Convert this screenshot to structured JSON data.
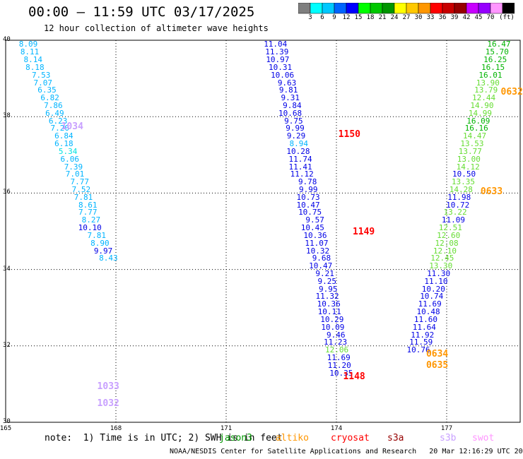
{
  "header": {
    "title": "00:00 – 11:59 UTC 03/17/2025",
    "subtitle": "12 hour collection of altimeter wave heights"
  },
  "colorbar": {
    "colors": [
      "#7f7f7f",
      "#00ffff",
      "#00c8ff",
      "#0064ff",
      "#0000ff",
      "#00ff00",
      "#00c800",
      "#009600",
      "#ffff00",
      "#ffc800",
      "#ff9600",
      "#ff0000",
      "#c80000",
      "#960000",
      "#c800ff",
      "#9600ff",
      "#ff96ff",
      "#000000"
    ],
    "labels": [
      "3",
      "6",
      "9",
      "12",
      "15",
      "18",
      "21",
      "24",
      "27",
      "30",
      "33",
      "36",
      "39",
      "42",
      "45",
      "70",
      "(ft)"
    ]
  },
  "map": {
    "lat_min": 30,
    "lat_max": 40,
    "lon_min": 165,
    "lon_max": 179,
    "lat_labels": [
      "40",
      "38",
      "36",
      "34",
      "32",
      "30"
    ],
    "lon_labels": [
      "165",
      "168",
      "171",
      "174",
      "177"
    ]
  },
  "wave_tracks": [
    {
      "satellite": "jason3",
      "points": [
        {
          "lat": 39.9,
          "lon": 165.87,
          "value": "8.09"
        },
        {
          "lat": 39.7,
          "lon": 165.91,
          "value": "8.11"
        },
        {
          "lat": 39.5,
          "lon": 166.0,
          "value": "8.14"
        },
        {
          "lat": 39.3,
          "lon": 166.05,
          "value": "8.18"
        },
        {
          "lat": 39.1,
          "lon": 166.22,
          "value": "7.53"
        },
        {
          "lat": 38.9,
          "lon": 166.27,
          "value": "7.07"
        },
        {
          "lat": 38.7,
          "lon": 166.38,
          "value": "6.35"
        },
        {
          "lat": 38.5,
          "lon": 166.46,
          "value": "6.82"
        },
        {
          "lat": 38.3,
          "lon": 166.55,
          "value": "7.86"
        },
        {
          "lat": 38.1,
          "lon": 166.59,
          "value": "6.49"
        },
        {
          "lat": 37.9,
          "lon": 166.68,
          "value": "6.23"
        },
        {
          "lat": 37.7,
          "lon": 166.73,
          "value": "7.20"
        },
        {
          "lat": 37.5,
          "lon": 166.84,
          "value": "6.84"
        },
        {
          "lat": 37.3,
          "lon": 166.84,
          "value": "6.18"
        },
        {
          "lat": 37.1,
          "lon": 166.95,
          "value": "5.34"
        },
        {
          "lat": 36.9,
          "lon": 167.0,
          "value": "6.06"
        },
        {
          "lat": 36.7,
          "lon": 167.1,
          "value": "7.39"
        },
        {
          "lat": 36.5,
          "lon": 167.14,
          "value": "7.01"
        },
        {
          "lat": 36.3,
          "lon": 167.27,
          "value": "7.77"
        },
        {
          "lat": 36.1,
          "lon": 167.31,
          "value": "7.52"
        },
        {
          "lat": 35.9,
          "lon": 167.37,
          "value": "7.81"
        },
        {
          "lat": 35.7,
          "lon": 167.49,
          "value": "8.61"
        },
        {
          "lat": 35.5,
          "lon": 167.49,
          "value": "7.77"
        },
        {
          "lat": 35.3,
          "lon": 167.58,
          "value": "8.27"
        },
        {
          "lat": 35.1,
          "lon": 167.61,
          "value": "10.10"
        },
        {
          "lat": 34.9,
          "lon": 167.73,
          "value": "7.81"
        },
        {
          "lat": 34.7,
          "lon": 167.82,
          "value": "8.90"
        },
        {
          "lat": 34.5,
          "lon": 167.91,
          "value": "9.97"
        },
        {
          "lat": 34.3,
          "lon": 168.05,
          "value": "8.43"
        }
      ]
    },
    {
      "satellite": "cryosat-a",
      "points": [
        {
          "lat": 39.9,
          "lon": 172.66,
          "value": "11.04"
        },
        {
          "lat": 39.7,
          "lon": 172.7,
          "value": "11.39"
        },
        {
          "lat": 39.5,
          "lon": 172.72,
          "value": "10.97"
        },
        {
          "lat": 39.3,
          "lon": 172.79,
          "value": "10.31"
        },
        {
          "lat": 39.1,
          "lon": 172.85,
          "value": "10.06"
        },
        {
          "lat": 38.9,
          "lon": 172.91,
          "value": "9.63"
        },
        {
          "lat": 38.7,
          "lon": 172.95,
          "value": "9.81"
        },
        {
          "lat": 38.5,
          "lon": 173.0,
          "value": "9.31"
        },
        {
          "lat": 38.3,
          "lon": 173.05,
          "value": "9.84"
        },
        {
          "lat": 38.1,
          "lon": 173.06,
          "value": "10.68"
        },
        {
          "lat": 37.9,
          "lon": 173.09,
          "value": "9.75"
        },
        {
          "lat": 37.7,
          "lon": 173.13,
          "value": "9.99"
        },
        {
          "lat": 37.5,
          "lon": 173.16,
          "value": "9.29"
        },
        {
          "lat": 37.3,
          "lon": 173.23,
          "value": "8.94"
        },
        {
          "lat": 37.1,
          "lon": 173.28,
          "value": "10.28"
        },
        {
          "lat": 36.9,
          "lon": 173.34,
          "value": "11.74"
        },
        {
          "lat": 36.7,
          "lon": 173.34,
          "value": "11.41"
        },
        {
          "lat": 36.5,
          "lon": 173.38,
          "value": "11.12"
        },
        {
          "lat": 36.3,
          "lon": 173.47,
          "value": "9.78"
        },
        {
          "lat": 36.1,
          "lon": 173.49,
          "value": "9.99"
        },
        {
          "lat": 35.9,
          "lon": 173.55,
          "value": "10.73"
        },
        {
          "lat": 35.7,
          "lon": 173.55,
          "value": "10.47"
        },
        {
          "lat": 35.5,
          "lon": 173.6,
          "value": "10.75"
        },
        {
          "lat": 35.3,
          "lon": 173.67,
          "value": "9.57"
        },
        {
          "lat": 35.1,
          "lon": 173.67,
          "value": "10.45"
        },
        {
          "lat": 34.9,
          "lon": 173.74,
          "value": "10.36"
        },
        {
          "lat": 34.7,
          "lon": 173.78,
          "value": "11.07"
        },
        {
          "lat": 34.5,
          "lon": 173.81,
          "value": "10.32"
        },
        {
          "lat": 34.3,
          "lon": 173.85,
          "value": "9.68"
        },
        {
          "lat": 34.1,
          "lon": 173.89,
          "value": "10.47"
        },
        {
          "lat": 33.9,
          "lon": 173.94,
          "value": "9.21"
        },
        {
          "lat": 33.7,
          "lon": 174.0,
          "value": "9.25"
        },
        {
          "lat": 33.5,
          "lon": 174.03,
          "value": "9.95"
        },
        {
          "lat": 33.3,
          "lon": 174.07,
          "value": "11.32"
        },
        {
          "lat": 33.1,
          "lon": 174.11,
          "value": "10.36"
        },
        {
          "lat": 32.9,
          "lon": 174.13,
          "value": "10.11"
        },
        {
          "lat": 32.7,
          "lon": 174.2,
          "value": "10.29"
        },
        {
          "lat": 32.5,
          "lon": 174.22,
          "value": "10.09"
        },
        {
          "lat": 32.3,
          "lon": 174.24,
          "value": "9.46"
        },
        {
          "lat": 32.1,
          "lon": 174.29,
          "value": "11.23"
        },
        {
          "lat": 31.9,
          "lon": 174.33,
          "value": "12.06"
        },
        {
          "lat": 31.7,
          "lon": 174.38,
          "value": "11.69"
        },
        {
          "lat": 31.5,
          "lon": 174.4,
          "value": "11.20"
        },
        {
          "lat": 31.3,
          "lon": 174.45,
          "value": "10.35"
        }
      ]
    },
    {
      "satellite": "cryosat-b",
      "points": [
        {
          "lat": 39.9,
          "lon": 178.74,
          "value": "16.47"
        },
        {
          "lat": 39.7,
          "lon": 178.69,
          "value": "15.70"
        },
        {
          "lat": 39.5,
          "lon": 178.64,
          "value": "16.25"
        },
        {
          "lat": 39.3,
          "lon": 178.58,
          "value": "16.15"
        },
        {
          "lat": 39.1,
          "lon": 178.51,
          "value": "16.01"
        },
        {
          "lat": 38.9,
          "lon": 178.44,
          "value": "13.90"
        },
        {
          "lat": 38.7,
          "lon": 178.39,
          "value": "13.79"
        },
        {
          "lat": 38.5,
          "lon": 178.33,
          "value": "12.44"
        },
        {
          "lat": 38.3,
          "lon": 178.28,
          "value": "14.90"
        },
        {
          "lat": 38.1,
          "lon": 178.23,
          "value": "14.99"
        },
        {
          "lat": 37.9,
          "lon": 178.18,
          "value": "16.09"
        },
        {
          "lat": 37.7,
          "lon": 178.13,
          "value": "16.16"
        },
        {
          "lat": 37.5,
          "lon": 178.08,
          "value": "14.47"
        },
        {
          "lat": 37.3,
          "lon": 178.01,
          "value": "13.53"
        },
        {
          "lat": 37.1,
          "lon": 177.96,
          "value": "13.77"
        },
        {
          "lat": 36.9,
          "lon": 177.92,
          "value": "13.00"
        },
        {
          "lat": 36.7,
          "lon": 177.9,
          "value": "14.12"
        },
        {
          "lat": 36.5,
          "lon": 177.79,
          "value": "10.50"
        },
        {
          "lat": 36.3,
          "lon": 177.77,
          "value": "13.35"
        },
        {
          "lat": 36.1,
          "lon": 177.71,
          "value": "14.28"
        },
        {
          "lat": 35.9,
          "lon": 177.66,
          "value": "11.98"
        },
        {
          "lat": 35.7,
          "lon": 177.62,
          "value": "10.72"
        },
        {
          "lat": 35.5,
          "lon": 177.55,
          "value": "13.22"
        },
        {
          "lat": 35.3,
          "lon": 177.5,
          "value": "11.09"
        },
        {
          "lat": 35.1,
          "lon": 177.42,
          "value": "12.51"
        },
        {
          "lat": 34.9,
          "lon": 177.37,
          "value": "12.60"
        },
        {
          "lat": 34.7,
          "lon": 177.32,
          "value": "12.08"
        },
        {
          "lat": 34.5,
          "lon": 177.27,
          "value": "12.10"
        },
        {
          "lat": 34.3,
          "lon": 177.2,
          "value": "12.45"
        },
        {
          "lat": 34.1,
          "lon": 177.16,
          "value": "13.30"
        },
        {
          "lat": 33.9,
          "lon": 177.1,
          "value": "11.30"
        },
        {
          "lat": 33.7,
          "lon": 177.03,
          "value": "11.10"
        },
        {
          "lat": 33.5,
          "lon": 176.96,
          "value": "10.20"
        },
        {
          "lat": 33.3,
          "lon": 176.91,
          "value": "10.74"
        },
        {
          "lat": 33.1,
          "lon": 176.86,
          "value": "11.69"
        },
        {
          "lat": 32.9,
          "lon": 176.82,
          "value": "10.48"
        },
        {
          "lat": 32.7,
          "lon": 176.75,
          "value": "11.60"
        },
        {
          "lat": 32.5,
          "lon": 176.71,
          "value": "11.64"
        },
        {
          "lat": 32.3,
          "lon": 176.66,
          "value": "11.92"
        },
        {
          "lat": 32.1,
          "lon": 176.62,
          "value": "11.59"
        },
        {
          "lat": 31.9,
          "lon": 176.55,
          "value": "10.76"
        }
      ]
    }
  ],
  "pass_times": [
    {
      "value": "1150",
      "lat": 37.55,
      "lon": 174.59,
      "color": "#ff0000"
    },
    {
      "value": "1149",
      "lat": 35.0,
      "lon": 174.98,
      "color": "#ff0000"
    },
    {
      "value": "1148",
      "lat": 31.2,
      "lon": 174.72,
      "color": "#ff0000"
    },
    {
      "value": "1034",
      "lat": 37.75,
      "lon": 167.05,
      "color": "#c8a0ff"
    },
    {
      "value": "1033",
      "lat": 30.95,
      "lon": 168.03,
      "color": "#c8a0ff"
    },
    {
      "value": "1032",
      "lat": 30.5,
      "lon": 168.03,
      "color": "#c8a0ff"
    },
    {
      "value": "0632",
      "lat": 38.65,
      "lon": 179.01,
      "color": "#ff9600"
    },
    {
      "value": "0633",
      "lat": 36.05,
      "lon": 178.46,
      "color": "#ff9600"
    },
    {
      "value": "0634",
      "lat": 31.8,
      "lon": 176.98,
      "color": "#ff9600"
    },
    {
      "value": "0635",
      "lat": 31.5,
      "lon": 176.98,
      "color": "#ff9600"
    }
  ],
  "note": "note:  1) Time is in UTC; 2) SWH is in feet",
  "satellites": [
    {
      "name": "jason3",
      "color": "#009600"
    },
    {
      "name": "altiko",
      "color": "#ff9600"
    },
    {
      "name": "cryosat",
      "color": "#ff0000"
    },
    {
      "name": "s3a",
      "color": "#960000"
    },
    {
      "name": "s3b",
      "color": "#c8a0ff"
    },
    {
      "name": "swot",
      "color": "#ff96ff"
    }
  ],
  "footer": "NOAA/NESDIS Center for Satellite Applications and Research   20 Mar 12:16:29 UTC 2025"
}
